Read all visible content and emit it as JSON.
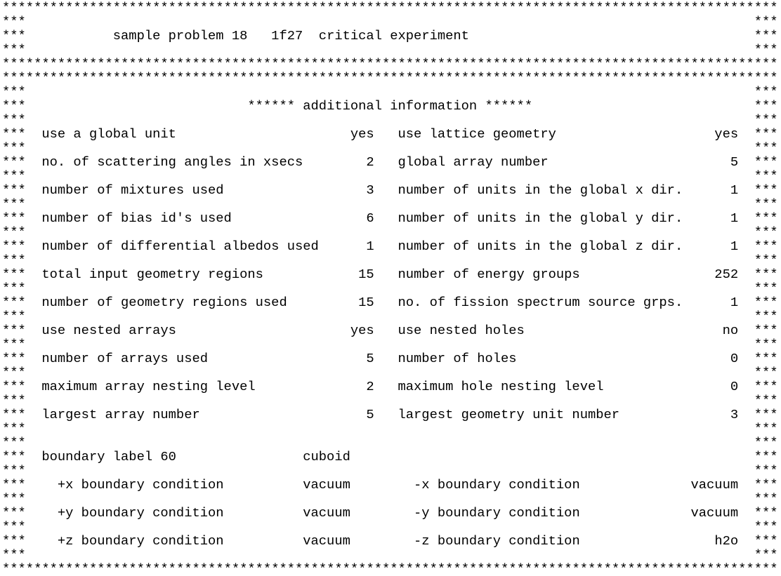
{
  "chrome": {
    "side": "***",
    "full_row": "**************************************************************************************************"
  },
  "title": "sample problem 18   1f27  critical experiment",
  "section_header": "****** additional information ******",
  "info_rows": [
    {
      "left_label": "use a global unit",
      "left_value": "yes",
      "right_label": "use lattice geometry",
      "right_value": "yes"
    },
    {
      "left_label": "no. of scattering angles in xsecs",
      "left_value": "2",
      "right_label": "global array number",
      "right_value": "5"
    },
    {
      "left_label": "number of mixtures used",
      "left_value": "3",
      "right_label": "number of units in the global x dir.",
      "right_value": "1"
    },
    {
      "left_label": "number of bias id's used",
      "left_value": "6",
      "right_label": "number of units in the global y dir.",
      "right_value": "1"
    },
    {
      "left_label": "number of differential albedos used",
      "left_value": "1",
      "right_label": "number of units in the global z dir.",
      "right_value": "1"
    },
    {
      "left_label": "total input geometry regions",
      "left_value": "15",
      "right_label": "number of energy groups",
      "right_value": "252"
    },
    {
      "left_label": "number of geometry regions used",
      "left_value": "15",
      "right_label": "no. of fission spectrum source grps.",
      "right_value": "1"
    },
    {
      "left_label": "use nested arrays",
      "left_value": "yes",
      "right_label": "use nested holes",
      "right_value": "no"
    },
    {
      "left_label": "number of arrays used",
      "left_value": "5",
      "right_label": "number of holes",
      "right_value": "0"
    },
    {
      "left_label": "maximum array nesting level",
      "left_value": "2",
      "right_label": "maximum hole nesting level",
      "right_value": "0"
    },
    {
      "left_label": "largest array number",
      "left_value": "5",
      "right_label": "largest geometry unit number",
      "right_value": "3"
    }
  ],
  "boundary": {
    "label": "boundary label 60",
    "shape": "cuboid",
    "rows": [
      {
        "left_label": "+x boundary condition",
        "left_value": "vacuum",
        "right_label": "-x boundary condition",
        "right_value": "vacuum"
      },
      {
        "left_label": "+y boundary condition",
        "left_value": "vacuum",
        "right_label": "-y boundary condition",
        "right_value": "vacuum"
      },
      {
        "left_label": "+z boundary condition",
        "left_value": "vacuum",
        "right_label": "-z boundary condition",
        "right_value": "h2o"
      }
    ]
  }
}
